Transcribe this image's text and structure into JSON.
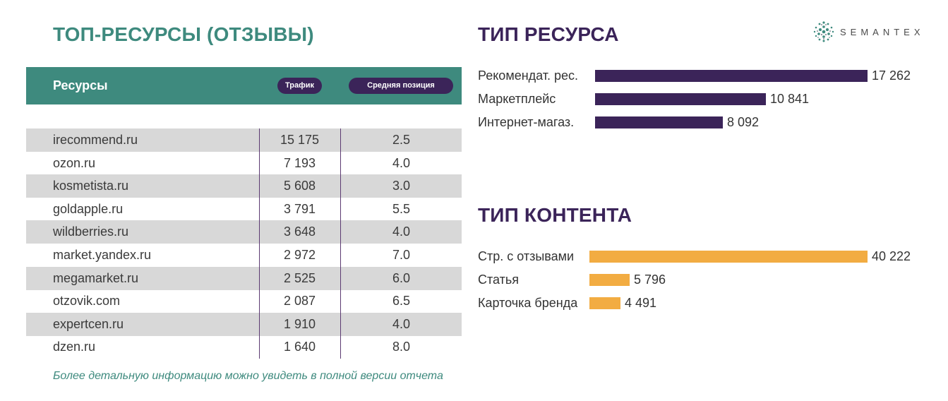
{
  "left": {
    "title": "ТОП-РЕСУРСЫ (ОТЗЫВЫ)",
    "table": {
      "headers": {
        "resource": "Ресурсы",
        "traffic": "Трафик",
        "position": "Средняя позиция"
      },
      "rows": [
        {
          "name": "irecommend.ru",
          "traffic": "15 175",
          "position": "2.5"
        },
        {
          "name": "ozon.ru",
          "traffic": "7 193",
          "position": "4.0"
        },
        {
          "name": "kosmetista.ru",
          "traffic": "5 608",
          "position": "3.0"
        },
        {
          "name": "goldapple.ru",
          "traffic": "3 791",
          "position": "5.5"
        },
        {
          "name": "wildberries.ru",
          "traffic": "3 648",
          "position": "4.0"
        },
        {
          "name": "market.yandex.ru",
          "traffic": "2 972",
          "position": "7.0"
        },
        {
          "name": "megamarket.ru",
          "traffic": "2 525",
          "position": "6.0"
        },
        {
          "name": "otzovik.com",
          "traffic": "2 087",
          "position": "6.5"
        },
        {
          "name": "expertcen.ru",
          "traffic": "1 910",
          "position": "4.0"
        },
        {
          "name": "dzen.ru",
          "traffic": "1 640",
          "position": "8.0"
        }
      ]
    },
    "footnote": "Более детальную информацию можно увидеть в полной версии отчета"
  },
  "logo": {
    "text": "SEMANTEX",
    "icon": "dots-cluster-icon"
  },
  "resource_type": {
    "title": "ТИП РЕСУРСА",
    "color": "#3b2459",
    "items": [
      {
        "label": "Рекомендат. рес.",
        "value": 17262,
        "display": "17 262"
      },
      {
        "label": "Маркетплейс",
        "value": 10841,
        "display": "10 841"
      },
      {
        "label": "Интернет-магаз.",
        "value": 8092,
        "display": "8 092"
      }
    ]
  },
  "content_type": {
    "title": "ТИП КОНТЕНТА",
    "color": "#f2ac42",
    "items": [
      {
        "label": "Стр. с отзывами",
        "value": 40222,
        "display": "40 222"
      },
      {
        "label": "Статья",
        "value": 5796,
        "display": "5 796"
      },
      {
        "label": "Карточка бренда",
        "value": 4491,
        "display": "4 491"
      }
    ]
  },
  "colors": {
    "teal": "#3e8a7e",
    "purple": "#3b2459",
    "orange": "#f2ac42",
    "stripe": "#d8d8d8"
  }
}
